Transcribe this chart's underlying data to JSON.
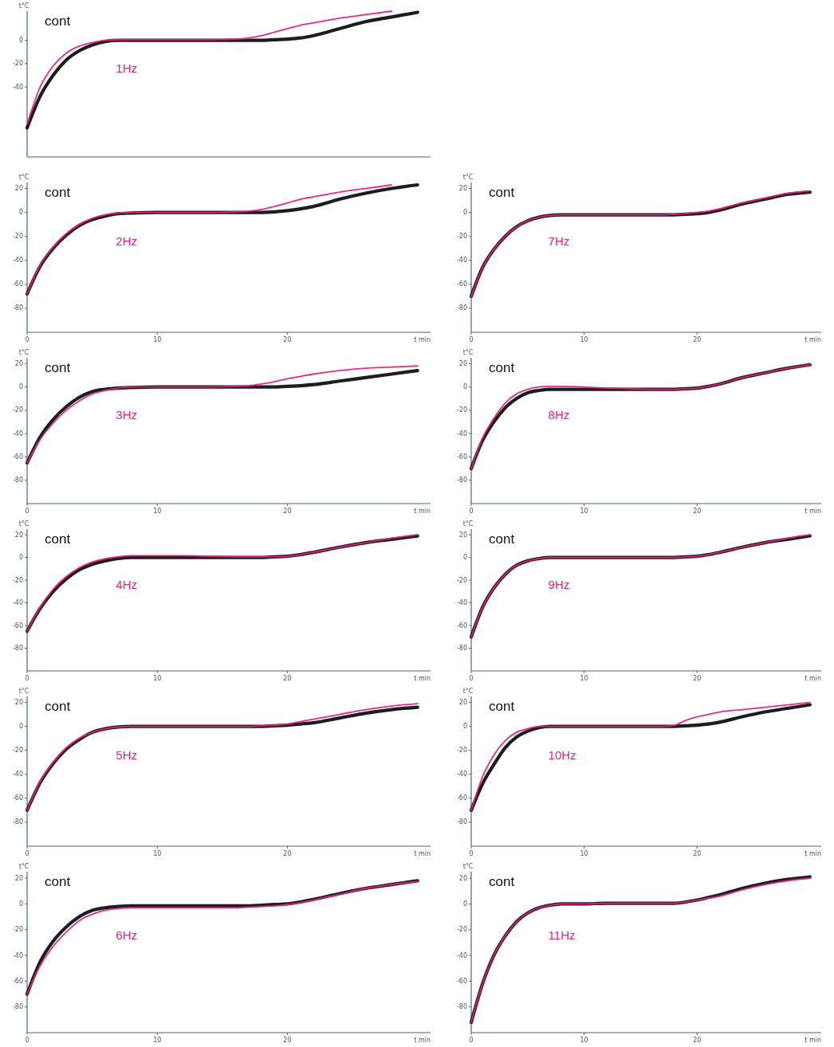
{
  "chart_data": [
    {
      "type": "line",
      "ylabel": "t°C",
      "x": [
        0,
        1,
        2,
        3,
        4,
        5,
        6,
        7,
        8,
        10,
        12,
        14,
        16,
        17,
        18,
        19,
        20,
        21,
        22,
        24,
        26,
        28,
        30
      ],
      "xlim": [
        0,
        31
      ],
      "ylim": [
        -100,
        25
      ],
      "yticks": [
        0,
        -20,
        -40
      ],
      "tick_labels": "y",
      "series": [
        {
          "name": "cont",
          "color": "#111111",
          "values": [
            -75,
            -48,
            -30,
            -17,
            -9,
            -4,
            -1,
            0,
            0,
            0,
            0,
            0,
            0,
            0,
            0,
            0.5,
            1,
            2,
            4,
            10,
            16,
            20,
            24
          ]
        },
        {
          "name": "1Hz",
          "color": "#e8207f",
          "values": [
            -72,
            -40,
            -22,
            -11,
            -5,
            -2,
            0,
            0.5,
            0.5,
            0.5,
            0.5,
            0.5,
            1,
            2,
            4,
            7,
            10,
            13,
            15,
            19,
            22,
            25,
            null
          ]
        }
      ]
    },
    {
      "type": "line",
      "ylabel": "t°C",
      "xlabel": "t min",
      "x": [
        0,
        1,
        2,
        3,
        4,
        5,
        6,
        7,
        8,
        10,
        12,
        14,
        16,
        17,
        18,
        19,
        20,
        21,
        22,
        24,
        26,
        28,
        30
      ],
      "xlim": [
        0,
        31
      ],
      "xticks": [
        0,
        10,
        20
      ],
      "ylim": [
        -100,
        25
      ],
      "yticks": [
        20,
        0,
        -20,
        -40,
        -60,
        -80
      ],
      "series": [
        {
          "name": "cont",
          "color": "#111111",
          "values": [
            -68,
            -45,
            -30,
            -19,
            -11,
            -6,
            -3,
            -1,
            -0.5,
            0,
            0,
            0,
            0,
            0,
            0,
            0.5,
            1.5,
            3,
            5,
            11,
            16,
            20,
            23
          ]
        },
        {
          "name": "2Hz",
          "color": "#e8207f",
          "values": [
            -68,
            -44,
            -29,
            -18,
            -10,
            -5,
            -2,
            -0.5,
            0,
            0,
            0,
            0,
            0.5,
            1,
            2.5,
            5,
            8,
            11,
            13,
            17,
            20,
            23,
            null
          ]
        }
      ]
    },
    {
      "type": "line",
      "ylabel": "t°C",
      "xlabel": "t min",
      "x": [
        0,
        1,
        2,
        3,
        4,
        5,
        6,
        7,
        8,
        10,
        12,
        14,
        16,
        17,
        18,
        19,
        20,
        21,
        22,
        24,
        26,
        28,
        30
      ],
      "xlim": [
        0,
        31
      ],
      "xticks": [
        0,
        10,
        20
      ],
      "ylim": [
        -100,
        25
      ],
      "yticks": [
        20,
        0,
        -20,
        -40,
        -60,
        -80
      ],
      "series": [
        {
          "name": "cont",
          "color": "#111111",
          "values": [
            -65,
            -43,
            -28,
            -17,
            -9,
            -4,
            -2,
            -1,
            -0.5,
            0,
            0,
            0,
            0,
            0,
            0,
            0,
            0.5,
            1,
            2,
            5,
            8,
            11,
            14
          ]
        },
        {
          "name": "3Hz",
          "color": "#e8207f",
          "values": [
            -65,
            -45,
            -31,
            -20,
            -12,
            -6,
            -3,
            -1,
            0,
            0,
            0,
            0,
            0.5,
            1,
            2.5,
            4.5,
            7,
            9,
            11,
            14,
            16,
            17,
            18
          ]
        }
      ]
    },
    {
      "type": "line",
      "ylabel": "t°C",
      "xlabel": "t min",
      "x": [
        0,
        1,
        2,
        3,
        4,
        5,
        6,
        7,
        8,
        10,
        12,
        14,
        16,
        17,
        18,
        19,
        20,
        21,
        22,
        24,
        26,
        28,
        30
      ],
      "xlim": [
        0,
        31
      ],
      "xticks": [
        0,
        10,
        20
      ],
      "ylim": [
        -100,
        25
      ],
      "yticks": [
        20,
        0,
        -20,
        -40,
        -60,
        -80
      ],
      "series": [
        {
          "name": "cont",
          "color": "#111111",
          "values": [
            -65,
            -45,
            -30,
            -19,
            -11,
            -6,
            -3,
            -1,
            0,
            0,
            0,
            0,
            0,
            0,
            0,
            0.5,
            1,
            2.5,
            4.5,
            9,
            13,
            16,
            19
          ]
        },
        {
          "name": "4Hz",
          "color": "#e8207f",
          "values": [
            -65,
            -44,
            -28,
            -17,
            -9,
            -4,
            -1,
            0.5,
            1.5,
            1.5,
            1.5,
            1,
            0.5,
            0.5,
            0.5,
            0.5,
            1,
            2.5,
            4.5,
            9,
            13,
            17,
            20
          ]
        }
      ]
    },
    {
      "type": "line",
      "ylabel": "t°C",
      "xlabel": "t min",
      "x": [
        0,
        1,
        2,
        3,
        4,
        5,
        6,
        7,
        8,
        10,
        12,
        14,
        16,
        17,
        18,
        19,
        20,
        21,
        22,
        24,
        26,
        28,
        30
      ],
      "xlim": [
        0,
        31
      ],
      "xticks": [
        0,
        10,
        20
      ],
      "ylim": [
        -100,
        25
      ],
      "yticks": [
        20,
        0,
        -20,
        -40,
        -60,
        -80
      ],
      "series": [
        {
          "name": "cont",
          "color": "#111111",
          "values": [
            -70,
            -47,
            -31,
            -19,
            -11,
            -5,
            -2,
            -0.5,
            0,
            0,
            0,
            0,
            0,
            0,
            0,
            0.5,
            1,
            2,
            3,
            7,
            11,
            14,
            16
          ]
        },
        {
          "name": "5Hz",
          "color": "#e8207f",
          "values": [
            -70,
            -46,
            -30,
            -18,
            -10,
            -5,
            -2,
            -0.5,
            0,
            0,
            0,
            0,
            0,
            0,
            0.5,
            1,
            2,
            4,
            6,
            10,
            14,
            17,
            19
          ]
        }
      ]
    },
    {
      "type": "line",
      "ylabel": "t°C",
      "xlabel": "t min",
      "x": [
        0,
        1,
        2,
        3,
        4,
        5,
        6,
        7,
        8,
        10,
        12,
        14,
        16,
        17,
        18,
        19,
        20,
        21,
        22,
        24,
        26,
        28,
        30
      ],
      "xlim": [
        0,
        31
      ],
      "xticks": [
        0,
        10,
        20
      ],
      "ylim": [
        -100,
        25
      ],
      "yticks": [
        20,
        0,
        -20,
        -40,
        -60,
        -80
      ],
      "series": [
        {
          "name": "cont",
          "color": "#111111",
          "values": [
            -70,
            -45,
            -29,
            -18,
            -10,
            -5,
            -3,
            -2,
            -1.5,
            -1.5,
            -1.5,
            -1.5,
            -1.5,
            -1.5,
            -1,
            -0.5,
            0,
            1.5,
            3.5,
            8,
            12,
            15,
            18
          ]
        },
        {
          "name": "6Hz",
          "color": "#e8207f",
          "values": [
            -70,
            -48,
            -33,
            -22,
            -13,
            -8,
            -5,
            -3.5,
            -3,
            -3,
            -3,
            -3,
            -3,
            -2.5,
            -2,
            -1.5,
            -0.5,
            1,
            3,
            7.5,
            12,
            15,
            17.5
          ]
        }
      ]
    },
    {
      "type": "line",
      "ylabel": "t°C",
      "xlabel": "t min",
      "x": [
        0,
        1,
        2,
        3,
        4,
        5,
        6,
        7,
        8,
        10,
        12,
        14,
        16,
        17,
        18,
        19,
        20,
        21,
        22,
        24,
        26,
        28,
        30
      ],
      "xlim": [
        0,
        31
      ],
      "xticks": [
        0,
        10,
        20
      ],
      "ylim": [
        -100,
        25
      ],
      "yticks": [
        20,
        0,
        -20,
        -40,
        -60,
        -80
      ],
      "series": [
        {
          "name": "cont",
          "color": "#111111",
          "values": [
            -70,
            -46,
            -31,
            -20,
            -12,
            -7,
            -4,
            -2.5,
            -2,
            -2,
            -2,
            -2,
            -2,
            -2,
            -2,
            -1.5,
            -1,
            0,
            2,
            7,
            11,
            15,
            17
          ]
        },
        {
          "name": "7Hz",
          "color": "#e8207f",
          "values": [
            -70,
            -46,
            -31,
            -20,
            -12,
            -7,
            -4,
            -2.5,
            -2,
            -2,
            -2,
            -2,
            -2,
            -2,
            -1.5,
            -1,
            0,
            1,
            3,
            8,
            12,
            16,
            18
          ]
        }
      ]
    },
    {
      "type": "line",
      "ylabel": "t°C",
      "xlabel": "t min",
      "x": [
        0,
        1,
        2,
        3,
        4,
        5,
        6,
        7,
        8,
        10,
        12,
        14,
        16,
        17,
        18,
        19,
        20,
        21,
        22,
        24,
        26,
        28,
        30
      ],
      "xlim": [
        0,
        31
      ],
      "xticks": [
        0,
        10,
        20
      ],
      "ylim": [
        -100,
        25
      ],
      "yticks": [
        20,
        0,
        -20,
        -40,
        -60,
        -80
      ],
      "series": [
        {
          "name": "cont",
          "color": "#111111",
          "values": [
            -70,
            -46,
            -30,
            -18,
            -10,
            -5,
            -3,
            -2,
            -2,
            -2,
            -2,
            -2,
            -2,
            -2,
            -2,
            -1.5,
            -1,
            0.5,
            2.5,
            8,
            12,
            16,
            19
          ]
        },
        {
          "name": "8Hz",
          "color": "#e8207f",
          "values": [
            -70,
            -44,
            -27,
            -14,
            -6,
            -2,
            0,
            0.5,
            0.5,
            0,
            -1,
            -1.5,
            -2,
            -2,
            -2,
            -1.5,
            -1,
            0.5,
            2.5,
            8,
            12,
            16,
            19
          ]
        }
      ]
    },
    {
      "type": "line",
      "ylabel": "t°C",
      "xlabel": "t min",
      "x": [
        0,
        1,
        2,
        3,
        4,
        5,
        6,
        7,
        8,
        10,
        12,
        14,
        16,
        17,
        18,
        19,
        20,
        21,
        22,
        24,
        26,
        28,
        30
      ],
      "xlim": [
        0,
        31
      ],
      "xticks": [
        0,
        10,
        20
      ],
      "ylim": [
        -100,
        25
      ],
      "yticks": [
        20,
        0,
        -20,
        -40,
        -60,
        -80
      ],
      "series": [
        {
          "name": "cont",
          "color": "#111111",
          "values": [
            -70,
            -44,
            -27,
            -15,
            -7,
            -3,
            -1,
            0,
            0,
            0,
            0,
            0,
            0,
            0,
            0,
            0.5,
            1,
            2.5,
            4.5,
            9,
            13,
            16,
            19
          ]
        },
        {
          "name": "9Hz",
          "color": "#e8207f",
          "values": [
            -70,
            -44,
            -27,
            -15,
            -7,
            -3,
            -1,
            0,
            0,
            0,
            0,
            0,
            0,
            0,
            0,
            0.5,
            1,
            2.5,
            4.5,
            9,
            13,
            17,
            20
          ]
        }
      ]
    },
    {
      "type": "line",
      "ylabel": "t°C",
      "xlabel": "t min",
      "x": [
        0,
        1,
        2,
        3,
        4,
        5,
        6,
        7,
        8,
        10,
        12,
        14,
        16,
        17,
        18,
        19,
        20,
        21,
        22,
        24,
        26,
        28,
        30
      ],
      "xlim": [
        0,
        31
      ],
      "xticks": [
        0,
        10,
        20
      ],
      "ylim": [
        -100,
        25
      ],
      "yticks": [
        20,
        0,
        -20,
        -40,
        -60,
        -80
      ],
      "series": [
        {
          "name": "cont",
          "color": "#111111",
          "values": [
            -70,
            -48,
            -32,
            -18,
            -9,
            -4,
            -1,
            0,
            0,
            0,
            0,
            0,
            0,
            0,
            0,
            0.5,
            1,
            2,
            3.5,
            8,
            12,
            15,
            18
          ]
        },
        {
          "name": "10Hz",
          "color": "#e8207f",
          "values": [
            -70,
            -42,
            -24,
            -12,
            -5,
            -2,
            0,
            0,
            0,
            0,
            0,
            0,
            0,
            0,
            1,
            5,
            8,
            10,
            12,
            14,
            16,
            18,
            20
          ]
        }
      ]
    },
    {
      "type": "line",
      "ylabel": "t°C",
      "xlabel": "t min",
      "x": [
        0,
        1,
        2,
        3,
        4,
        5,
        6,
        7,
        8,
        10,
        12,
        14,
        16,
        17,
        18,
        19,
        20,
        21,
        22,
        24,
        26,
        28,
        30
      ],
      "xlim": [
        0,
        31
      ],
      "xticks": [
        0,
        10,
        20
      ],
      "ylim": [
        -100,
        25
      ],
      "yticks": [
        20,
        0,
        -20,
        -40,
        -60,
        -80
      ],
      "series": [
        {
          "name": "cont",
          "color": "#111111",
          "values": [
            -92,
            -62,
            -40,
            -25,
            -14,
            -7,
            -3,
            -1,
            0,
            0,
            0.5,
            0.5,
            0.5,
            0.5,
            0.5,
            1.5,
            3,
            5,
            7,
            12,
            16,
            19,
            21
          ]
        },
        {
          "name": "11Hz",
          "color": "#e8207f",
          "values": [
            -92,
            -62,
            -40,
            -25,
            -14,
            -7,
            -3,
            -1,
            0,
            0,
            0.5,
            0.5,
            0.5,
            0.5,
            0.5,
            1.5,
            3,
            4.5,
            6,
            11,
            15,
            18,
            20
          ]
        }
      ]
    }
  ]
}
